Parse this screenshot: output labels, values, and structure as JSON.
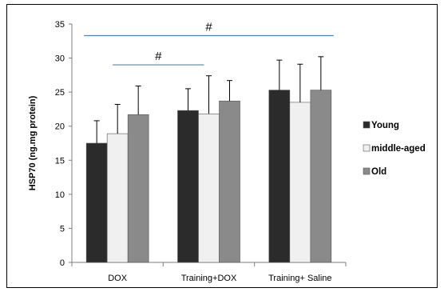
{
  "chart_data": {
    "type": "bar",
    "ylabel": "HSP70 (ng.mg protein)",
    "ylim": [
      0,
      35
    ],
    "yticks": [
      0,
      5,
      10,
      15,
      20,
      25,
      30,
      35
    ],
    "categories": [
      "DOX",
      "Training+DOX",
      "Training+ Saline"
    ],
    "series": [
      {
        "name": "Young",
        "color": "#2b2b2b",
        "values": [
          17.5,
          22.3,
          25.3
        ],
        "errors": [
          3.3,
          3.2,
          4.4
        ]
      },
      {
        "name": "middle-aged",
        "color": "#f0f0f0",
        "values": [
          18.9,
          21.8,
          23.5
        ],
        "errors": [
          4.3,
          5.6,
          5.6
        ]
      },
      {
        "name": "Old",
        "color": "#8a8a8a",
        "values": [
          21.7,
          23.7,
          25.3
        ],
        "errors": [
          4.2,
          3.0,
          4.9
        ]
      }
    ],
    "significance": [
      {
        "label": "#",
        "y": 33.3,
        "from_category": 0,
        "to_category": 2
      },
      {
        "label": "#",
        "y": 29.0,
        "from_category": 0,
        "to_category": 1
      }
    ],
    "grid": false,
    "legend": "right"
  }
}
